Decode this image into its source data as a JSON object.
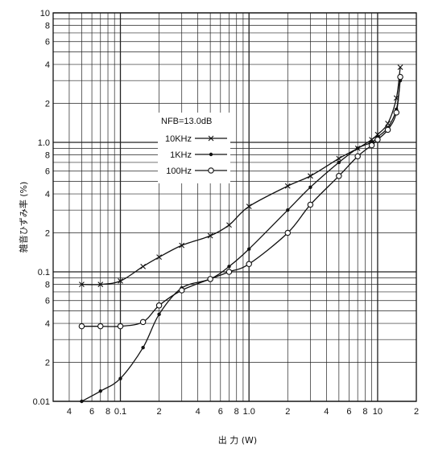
{
  "chart_data": {
    "type": "line",
    "xlabel": "出 力 (W)",
    "ylabel": "雑音ひずみ率 (%)",
    "xscale": "log",
    "yscale": "log",
    "xlim": [
      0.03,
      20
    ],
    "ylim": [
      0.01,
      10
    ],
    "grid": true,
    "x_tick_labels": [
      {
        "v": 0.04,
        "t": "4"
      },
      {
        "v": 0.06,
        "t": "6"
      },
      {
        "v": 0.08,
        "t": "8"
      },
      {
        "v": 0.1,
        "t": "0.1"
      },
      {
        "v": 0.2,
        "t": "2"
      },
      {
        "v": 0.4,
        "t": "4"
      },
      {
        "v": 0.6,
        "t": "6"
      },
      {
        "v": 0.8,
        "t": "8"
      },
      {
        "v": 1.0,
        "t": "1.0"
      },
      {
        "v": 2,
        "t": "2"
      },
      {
        "v": 4,
        "t": "4"
      },
      {
        "v": 6,
        "t": "6"
      },
      {
        "v": 8,
        "t": "8"
      },
      {
        "v": 10,
        "t": "10"
      },
      {
        "v": 20,
        "t": "2"
      }
    ],
    "y_tick_labels": [
      {
        "v": 0.01,
        "t": "0.01"
      },
      {
        "v": 0.02,
        "t": "2"
      },
      {
        "v": 0.04,
        "t": "4"
      },
      {
        "v": 0.06,
        "t": "6"
      },
      {
        "v": 0.08,
        "t": "8"
      },
      {
        "v": 0.1,
        "t": "0.1"
      },
      {
        "v": 0.2,
        "t": "2"
      },
      {
        "v": 0.4,
        "t": "4"
      },
      {
        "v": 0.6,
        "t": "6"
      },
      {
        "v": 0.8,
        "t": "8"
      },
      {
        "v": 1.0,
        "t": "1.0"
      },
      {
        "v": 2,
        "t": "2"
      },
      {
        "v": 4,
        "t": "4"
      },
      {
        "v": 6,
        "t": "6"
      },
      {
        "v": 8,
        "t": "8"
      },
      {
        "v": 10,
        "t": "10"
      }
    ],
    "legend": {
      "title": "NFB=13.0dB",
      "placement": "center"
    },
    "series": [
      {
        "name": "10KHz",
        "marker": "x",
        "points": [
          [
            0.05,
            0.08
          ],
          [
            0.07,
            0.08
          ],
          [
            0.1,
            0.085
          ],
          [
            0.15,
            0.11
          ],
          [
            0.2,
            0.13
          ],
          [
            0.3,
            0.16
          ],
          [
            0.5,
            0.19
          ],
          [
            0.7,
            0.23
          ],
          [
            1.0,
            0.32
          ],
          [
            2,
            0.46
          ],
          [
            3,
            0.55
          ],
          [
            5,
            0.75
          ],
          [
            7,
            0.9
          ],
          [
            9,
            1.05
          ],
          [
            10,
            1.15
          ],
          [
            12,
            1.4
          ],
          [
            14,
            2.2
          ],
          [
            15,
            3.8
          ]
        ]
      },
      {
        "name": "1KHz",
        "marker": "dot",
        "points": [
          [
            0.05,
            0.01
          ],
          [
            0.07,
            0.012
          ],
          [
            0.1,
            0.015
          ],
          [
            0.15,
            0.026
          ],
          [
            0.2,
            0.047
          ],
          [
            0.3,
            0.075
          ],
          [
            0.5,
            0.088
          ],
          [
            0.7,
            0.11
          ],
          [
            1.0,
            0.15
          ],
          [
            2,
            0.3
          ],
          [
            3,
            0.45
          ],
          [
            5,
            0.7
          ],
          [
            7,
            0.9
          ],
          [
            9,
            1.0
          ],
          [
            10,
            1.1
          ],
          [
            12,
            1.3
          ],
          [
            14,
            1.8
          ],
          [
            15,
            3.0
          ]
        ]
      },
      {
        "name": "100Hz",
        "marker": "circle",
        "points": [
          [
            0.05,
            0.038
          ],
          [
            0.07,
            0.038
          ],
          [
            0.1,
            0.038
          ],
          [
            0.15,
            0.041
          ],
          [
            0.2,
            0.055
          ],
          [
            0.3,
            0.072
          ],
          [
            0.5,
            0.088
          ],
          [
            0.7,
            0.1
          ],
          [
            1.0,
            0.115
          ],
          [
            2,
            0.2
          ],
          [
            3,
            0.33
          ],
          [
            5,
            0.55
          ],
          [
            7,
            0.78
          ],
          [
            9,
            0.95
          ],
          [
            10,
            1.05
          ],
          [
            12,
            1.25
          ],
          [
            14,
            1.7
          ],
          [
            15,
            3.2
          ]
        ]
      }
    ]
  }
}
